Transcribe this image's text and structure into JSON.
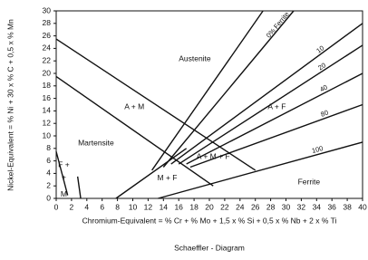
{
  "chart_data": {
    "type": "line",
    "xlabel": "Chromium-Equivalent = % Cr + % Mo + 1,5 x % Si + 0,5 x % Nb + 2 x % Ti",
    "ylabel": "Nickel-Equivalent = % Ni + 30 x % C + 0,5 x % Mn",
    "caption": "Schaeffler - Diagram",
    "xlim": [
      0,
      40
    ],
    "ylim": [
      0,
      30
    ],
    "xticks": [
      0,
      2,
      4,
      6,
      8,
      10,
      12,
      14,
      16,
      18,
      20,
      22,
      24,
      26,
      28,
      30,
      32,
      34,
      36,
      38,
      40
    ],
    "yticks": [
      0,
      2,
      4,
      6,
      8,
      10,
      12,
      14,
      16,
      18,
      20,
      22,
      24,
      26,
      28,
      30
    ],
    "grid": false,
    "color": "#111111",
    "series": [
      {
        "x": [
          0,
          26
        ],
        "values": [
          25.5,
          4.5
        ]
      },
      {
        "x": [
          0,
          20.5
        ],
        "values": [
          19.5,
          2
        ]
      },
      {
        "x": [
          0,
          1.5
        ],
        "values": [
          7.5,
          0.5
        ]
      },
      {
        "x": [
          2.8,
          3.2
        ],
        "values": [
          3.5,
          0
        ]
      },
      {
        "x": [
          7.8,
          17
        ],
        "values": [
          0,
          8
        ]
      },
      {
        "x": [
          12.5,
          27
        ],
        "values": [
          4.5,
          30
        ]
      },
      {
        "name": "0% Ferrite",
        "x": [
          14,
          31
        ],
        "values": [
          5,
          30
        ]
      },
      {
        "name": "10",
        "x": [
          15,
          40
        ],
        "values": [
          5.5,
          28
        ]
      },
      {
        "name": "20",
        "x": [
          16,
          40
        ],
        "values": [
          5.5,
          24.5
        ]
      },
      {
        "name": "40",
        "x": [
          17,
          40
        ],
        "values": [
          5.5,
          20
        ]
      },
      {
        "name": "80",
        "x": [
          17.5,
          40
        ],
        "values": [
          5,
          15
        ]
      },
      {
        "name": "100",
        "x": [
          13.3,
          40
        ],
        "values": [
          0,
          9
        ]
      }
    ],
    "annotations": [
      "Austenite",
      "A + M",
      "Martensite",
      "A + F",
      "A + M + F",
      "M + F",
      "Ferrite",
      "F +",
      "+",
      "M"
    ]
  }
}
